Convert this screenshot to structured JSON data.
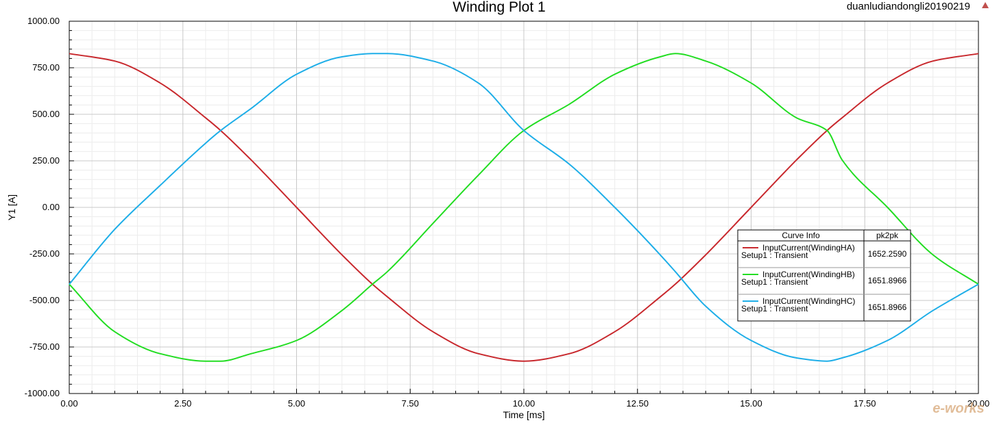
{
  "app": {
    "project_name": "duanludiandongli20190219"
  },
  "chart_data": {
    "type": "line",
    "title": "Winding Plot 1",
    "xlabel": "Time [ms]",
    "ylabel": "Y1 [A]",
    "xlim": [
      0,
      20
    ],
    "ylim": [
      -1000,
      1000
    ],
    "x_ticks": [
      "0.00",
      "2.50",
      "5.00",
      "7.50",
      "10.00",
      "12.50",
      "15.00",
      "17.50",
      "20.00"
    ],
    "y_ticks": [
      "1000.00",
      "750.00",
      "500.00",
      "250.00",
      "0.00",
      "-250.00",
      "-500.00",
      "-750.00",
      "-1000.00"
    ],
    "grid": true,
    "legend_position": "center-right",
    "legend": {
      "header_curve": "Curve Info",
      "header_value": "pk2pk"
    },
    "series": [
      {
        "name": "InputCurrent(WindingHA)",
        "setup": "Setup1 : Transient",
        "pk2pk": "1652.2590",
        "color": "#c8282d",
        "x": [
          0,
          1,
          2,
          3,
          3.33,
          4,
          5,
          6,
          6.67,
          7,
          8,
          9,
          10,
          11,
          12,
          13,
          13.33,
          14,
          15,
          16,
          16.67,
          17,
          18,
          19,
          20
        ],
        "values": [
          826,
          786,
          668,
          481,
          413,
          255,
          0,
          -255,
          -413,
          -481,
          -668,
          -786,
          -826,
          -786,
          -668,
          -481,
          -413,
          -255,
          0,
          255,
          413,
          481,
          668,
          786,
          826
        ]
      },
      {
        "name": "InputCurrent(WindingHB)",
        "setup": "Setup1 : Transient",
        "pk2pk": "1651.8966",
        "color": "#22dd22",
        "x": [
          0,
          1,
          2,
          3,
          3.33,
          4,
          5,
          6,
          6.67,
          7,
          8,
          9,
          10,
          11,
          12,
          13,
          13.33,
          14,
          15,
          16,
          16.67,
          17,
          18,
          19,
          20
        ],
        "values": [
          -413,
          -668,
          -786,
          -826,
          -826,
          -786,
          -715,
          -554,
          -413,
          -345,
          -86,
          173,
          413,
          554,
          715,
          809,
          826,
          786,
          668,
          481,
          413,
          255,
          0,
          -255,
          -413
        ]
      },
      {
        "name": "InputCurrent(WindingHC)",
        "setup": "Setup1 : Transient",
        "pk2pk": "1651.8966",
        "color": "#1eaee8",
        "x": [
          0,
          1,
          2,
          3,
          3.33,
          4,
          5,
          6,
          6.67,
          7,
          8,
          9,
          10,
          11,
          12,
          13,
          13.33,
          14,
          15,
          16,
          16.67,
          17,
          18,
          19,
          20
        ],
        "values": [
          -413,
          -118,
          118,
          345,
          413,
          531,
          715,
          809,
          826,
          826,
          786,
          668,
          413,
          232,
          0,
          -255,
          -345,
          -531,
          -715,
          -809,
          -826,
          -809,
          -715,
          -554,
          -413
        ]
      }
    ]
  },
  "watermark": {
    "text": "e-works"
  }
}
